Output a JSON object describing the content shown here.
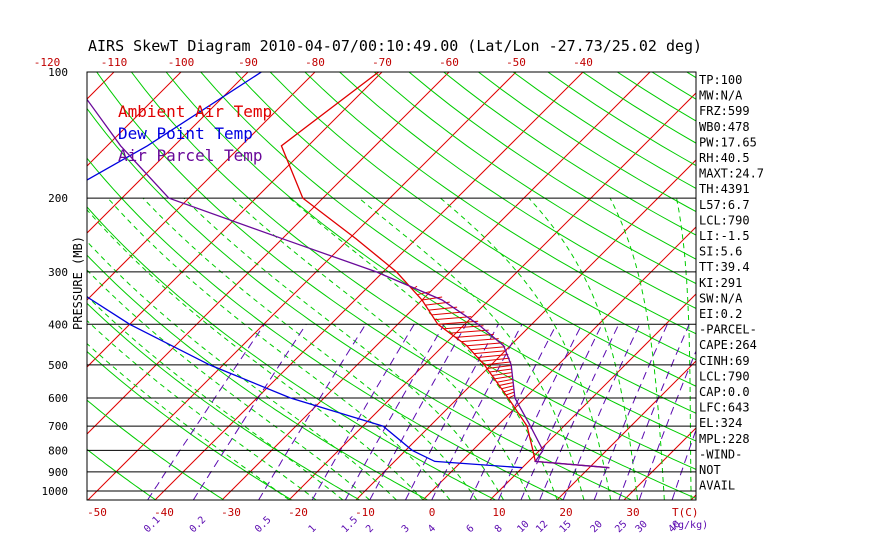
{
  "chart_data": {
    "type": "skewt",
    "title": "AIRS SkewT Diagram 2010-04-07/00:10:49.00 (Lat/Lon -27.73/25.02 deg)",
    "ylabel": "PRESSURE (MB)",
    "pressure_levels": [
      100,
      200,
      300,
      400,
      500,
      600,
      700,
      800,
      900,
      1000
    ],
    "temp_top_ticks": [
      -120,
      -110,
      -100,
      -90,
      -80,
      -70,
      -60,
      -50,
      -40
    ],
    "temp_bottom_ticks": [
      -50,
      -40,
      -30,
      -20,
      -10,
      0,
      10,
      20,
      30
    ],
    "temp_unit_label": "T(C)",
    "mixing_ratio_labels": [
      "0.1",
      "0.2",
      "0.5",
      "1",
      "1.5",
      "2",
      "3",
      "4",
      "6",
      "8",
      "10",
      "12",
      "15",
      "20",
      "25",
      "30",
      "40"
    ],
    "mixing_ratio_unit": "(g/kg)",
    "legend": [
      {
        "name": "Ambient Air Temp",
        "color": "#e00000"
      },
      {
        "name": "Dew Point Temp",
        "color": "#0000e0"
      },
      {
        "name": "Air Parcel Temp",
        "color": "#6a0a9a"
      }
    ],
    "series": [
      {
        "name": "Ambient Air Temp",
        "points": [
          {
            "p": 100,
            "t": -70.5
          },
          {
            "p": 150,
            "t": -74
          },
          {
            "p": 200,
            "t": -63
          },
          {
            "p": 250,
            "t": -49
          },
          {
            "p": 300,
            "t": -38
          },
          {
            "p": 350,
            "t": -30
          },
          {
            "p": 400,
            "t": -24
          },
          {
            "p": 450,
            "t": -16.5
          },
          {
            "p": 500,
            "t": -11
          },
          {
            "p": 600,
            "t": -2.5
          },
          {
            "p": 700,
            "t": 4.5
          },
          {
            "p": 800,
            "t": 9
          },
          {
            "p": 850,
            "t": 11
          },
          {
            "p": 880,
            "t": 23
          }
        ]
      },
      {
        "name": "Dew Point Temp",
        "points": [
          {
            "p": 100,
            "t": -88
          },
          {
            "p": 150,
            "t": -94
          },
          {
            "p": 200,
            "t": -100
          },
          {
            "p": 250,
            "t": -103
          },
          {
            "p": 300,
            "t": -90
          },
          {
            "p": 400,
            "t": -70
          },
          {
            "p": 500,
            "t": -52
          },
          {
            "p": 600,
            "t": -35
          },
          {
            "p": 700,
            "t": -17
          },
          {
            "p": 800,
            "t": -9
          },
          {
            "p": 850,
            "t": -4
          },
          {
            "p": 880,
            "t": 10
          }
        ]
      },
      {
        "name": "Air Parcel Temp",
        "points": [
          {
            "p": 100,
            "t": -117
          },
          {
            "p": 150,
            "t": -98
          },
          {
            "p": 200,
            "t": -83
          },
          {
            "p": 250,
            "t": -60
          },
          {
            "p": 300,
            "t": -41
          },
          {
            "p": 350,
            "t": -27
          },
          {
            "p": 400,
            "t": -18
          },
          {
            "p": 450,
            "t": -11
          },
          {
            "p": 500,
            "t": -7
          },
          {
            "p": 600,
            "t": -1.5
          },
          {
            "p": 700,
            "t": 5
          },
          {
            "p": 800,
            "t": 10.5
          },
          {
            "p": 850,
            "t": 11
          },
          {
            "p": 880,
            "t": 23
          }
        ]
      }
    ],
    "indices": [
      "TP:100",
      "MW:N/A",
      "FRZ:599",
      "WB0:478",
      "PW:17.65",
      "RH:40.5",
      "MAXT:24.7",
      "TH:4391",
      "L57:6.7",
      "LCL:790",
      "LI:-1.5",
      "SI:5.6",
      "TT:39.4",
      "KI:291",
      "SW:N/A",
      "EI:0.2",
      "-PARCEL-",
      "CAPE:264",
      "CINH:69",
      "LCL:790",
      "CAP:0.0",
      "LFC:643",
      "EL:324",
      "MPL:228",
      "-WIND-",
      " NOT",
      "AVAIL"
    ],
    "colors": {
      "isotherm": "#e00000",
      "dry_adiabat": "#00cc00",
      "moist_adiabat": "#00cc00",
      "mixing_ratio": "#5b0ab0",
      "isobar": "#000000",
      "cape_hatch": "#e00000"
    }
  }
}
